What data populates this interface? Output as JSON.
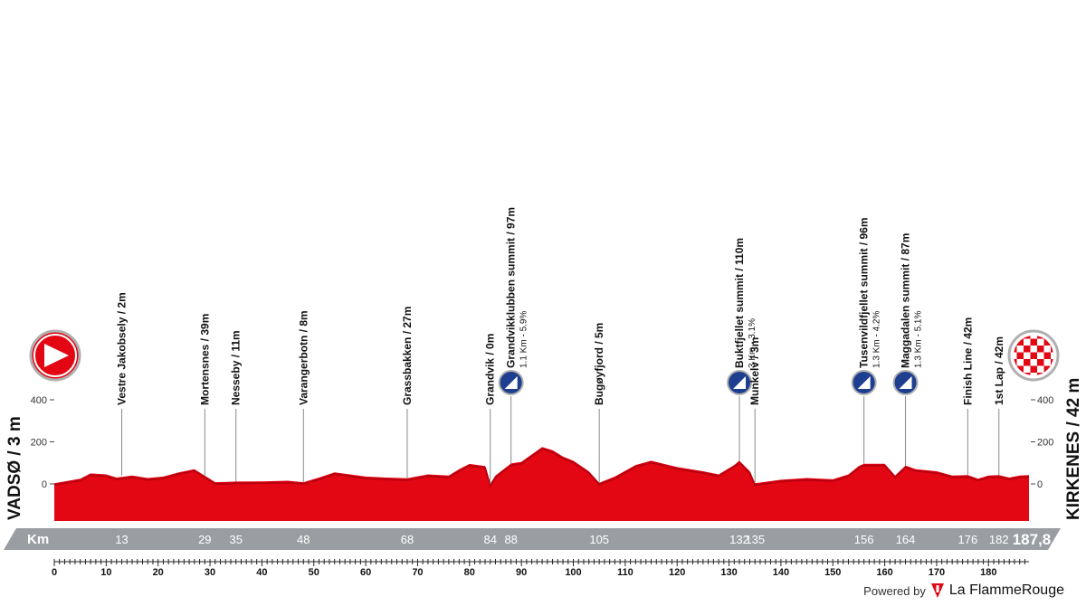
{
  "stage": {
    "start": {
      "name": "VADSØ / 3 m",
      "icon": "start-arrow-icon"
    },
    "finish": {
      "name": "KIRKENES / 42 m",
      "icon": "finish-flag-icon"
    },
    "brand": {
      "powered": "Powered by",
      "name": "La FlammeRouge",
      "icon": "flame-rouge-logo-icon"
    }
  },
  "colors": {
    "profile": "#e30613",
    "profile_dark": "#b9000f",
    "bar": "#9a9ea3",
    "climb_icon": "#1e3f8f"
  },
  "chart_data": {
    "type": "area",
    "title": "",
    "xlabel": "",
    "ylabel": "",
    "x_unit": "km",
    "y_unit": "m",
    "xlim": [
      0,
      187.8
    ],
    "ylim": [
      0,
      400
    ],
    "x_ticks": [
      0,
      10,
      20,
      30,
      40,
      50,
      60,
      70,
      80,
      90,
      100,
      110,
      120,
      130,
      140,
      150,
      160,
      170,
      180
    ],
    "y_ticks": [
      0,
      200,
      400
    ],
    "grid": false,
    "series": [
      {
        "x": [
          0,
          5,
          7,
          10,
          12,
          15,
          18,
          21,
          24,
          27,
          29,
          31,
          35,
          40,
          45,
          48,
          51,
          54,
          57,
          60,
          64,
          68,
          72,
          76,
          78,
          80,
          83,
          84,
          85,
          88,
          90,
          92,
          94,
          96,
          98,
          100,
          103,
          105,
          108,
          112,
          115,
          120,
          125,
          128,
          131,
          132,
          134,
          135,
          137,
          140,
          145,
          150,
          153,
          155,
          156,
          160,
          162,
          164,
          166,
          170,
          173,
          176,
          178,
          180,
          182,
          184,
          186,
          187.8
        ],
        "y": [
          3,
          25,
          50,
          45,
          30,
          40,
          28,
          35,
          55,
          70,
          39,
          8,
          11,
          12,
          15,
          8,
          30,
          55,
          45,
          35,
          30,
          27,
          45,
          40,
          70,
          95,
          85,
          0,
          40,
          97,
          105,
          140,
          175,
          160,
          130,
          110,
          60,
          5,
          35,
          90,
          110,
          80,
          60,
          45,
          90,
          110,
          60,
          3,
          10,
          20,
          28,
          22,
          45,
          85,
          96,
          96,
          40,
          87,
          70,
          60,
          40,
          42,
          25,
          40,
          42,
          30,
          40,
          42
        ]
      }
    ],
    "km_markers": [
      "13",
      "29",
      "35",
      "48",
      "68",
      "84",
      "88",
      "105",
      "132",
      "135",
      "156",
      "164",
      "176",
      "182"
    ],
    "km_marker_values": [
      13,
      29,
      35,
      48,
      68,
      84,
      88,
      105,
      132,
      135,
      156,
      164,
      176,
      182
    ],
    "total_distance": "187,8",
    "bar_title": "Km",
    "points": [
      {
        "km": 13,
        "label": "Vestre Jakobsely / 2m",
        "sub": ""
      },
      {
        "km": 29,
        "label": "Mortensnes / 39m",
        "sub": ""
      },
      {
        "km": 35,
        "label": "Nesseby / 11m",
        "sub": ""
      },
      {
        "km": 48,
        "label": "Varangerbotn / 8m",
        "sub": ""
      },
      {
        "km": 68,
        "label": "Grassbakken / 27m",
        "sub": ""
      },
      {
        "km": 84,
        "label": "Grandvik / 0m",
        "sub": ""
      },
      {
        "km": 88,
        "label": "Grandvikklubben summit / 97m",
        "sub": "1.1 Km - 5.9%",
        "climb": true
      },
      {
        "km": 105,
        "label": "Bugøyfjord / 5m",
        "sub": ""
      },
      {
        "km": 132,
        "label": "Buktfjellet summit / 110m",
        "sub": "3 Km - 3.1%",
        "climb": true
      },
      {
        "km": 135,
        "label": "Munkelv / 3m",
        "sub": ""
      },
      {
        "km": 156,
        "label": "Tusenvildfjellet summit / 96m",
        "sub": "1.3 Km - 4.2%",
        "climb": true
      },
      {
        "km": 164,
        "label": "Maggadalen summit / 87m",
        "sub": "1.3 Km - 5.1%",
        "climb": true
      },
      {
        "km": 176,
        "label": "Finish Line / 42m",
        "sub": ""
      },
      {
        "km": 182,
        "label": "1st Lap / 42m",
        "sub": ""
      }
    ]
  }
}
